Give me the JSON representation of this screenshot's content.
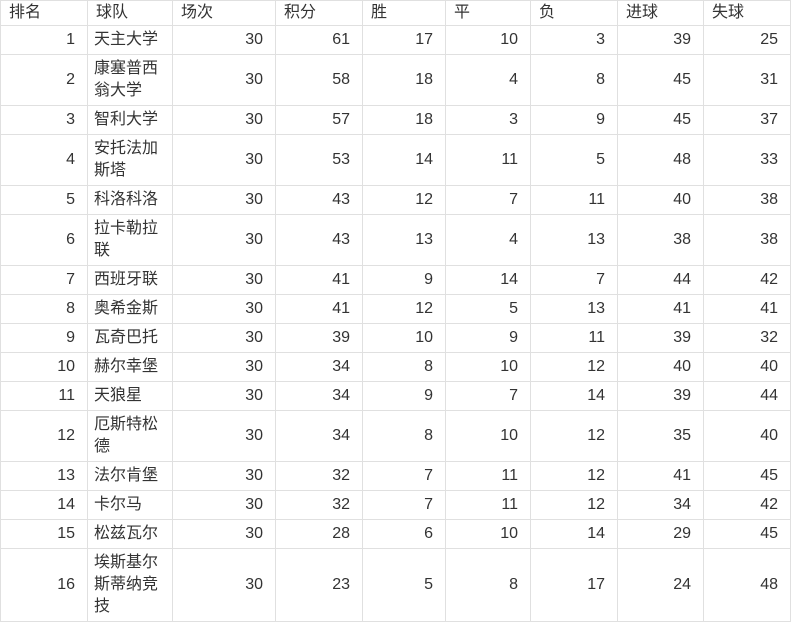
{
  "colors": {
    "background": "#ffffff",
    "grid_border": "#e0e0e0",
    "text": "#333333"
  },
  "chart_data": {
    "type": "table",
    "columns": [
      "排名",
      "球队",
      "场次",
      "积分",
      "胜",
      "平",
      "负",
      "进球",
      "失球"
    ],
    "rows": [
      [
        1,
        "天主大学",
        30,
        61,
        17,
        10,
        3,
        39,
        25
      ],
      [
        2,
        "康塞普西翁大学",
        30,
        58,
        18,
        4,
        8,
        45,
        31
      ],
      [
        3,
        "智利大学",
        30,
        57,
        18,
        3,
        9,
        45,
        37
      ],
      [
        4,
        "安托法加斯塔",
        30,
        53,
        14,
        11,
        5,
        48,
        33
      ],
      [
        5,
        "科洛科洛",
        30,
        43,
        12,
        7,
        11,
        40,
        38
      ],
      [
        6,
        "拉卡勒拉联",
        30,
        43,
        13,
        4,
        13,
        38,
        38
      ],
      [
        7,
        "西班牙联",
        30,
        41,
        9,
        14,
        7,
        44,
        42
      ],
      [
        8,
        "奥希金斯",
        30,
        41,
        12,
        5,
        13,
        41,
        41
      ],
      [
        9,
        "瓦奇巴托",
        30,
        39,
        10,
        9,
        11,
        39,
        32
      ],
      [
        10,
        "赫尔幸堡",
        30,
        34,
        8,
        10,
        12,
        40,
        40
      ],
      [
        11,
        "天狼星",
        30,
        34,
        9,
        7,
        14,
        39,
        44
      ],
      [
        12,
        "厄斯特松德",
        30,
        34,
        8,
        10,
        12,
        35,
        40
      ],
      [
        13,
        "法尔肯堡",
        30,
        32,
        7,
        11,
        12,
        41,
        45
      ],
      [
        14,
        "卡尔马",
        30,
        32,
        7,
        11,
        12,
        34,
        42
      ],
      [
        15,
        "松兹瓦尔",
        30,
        28,
        6,
        10,
        14,
        29,
        45
      ],
      [
        16,
        "埃斯基尔斯蒂纳竞技",
        30,
        23,
        5,
        8,
        17,
        24,
        48
      ]
    ]
  }
}
